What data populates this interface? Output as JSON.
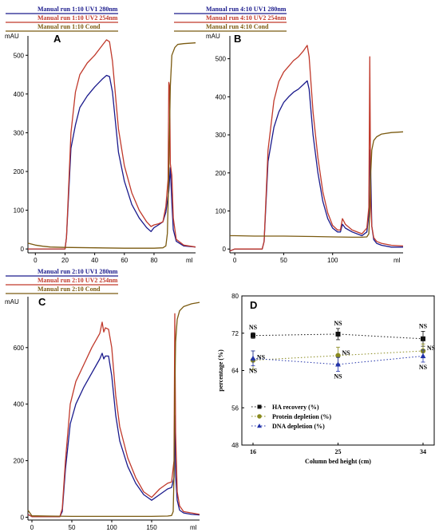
{
  "colors": {
    "uv1": "#1a1a8c",
    "uv2": "#c0392b",
    "cond": "#7a5a10",
    "ha": "#111111",
    "protein": "#8a8a1e",
    "dna": "#2233aa"
  },
  "chart_data": [
    {
      "panel": "A",
      "type": "line",
      "yunit": "mAU",
      "xunit": "ml",
      "xlim": [
        -5,
        108
      ],
      "ylim": [
        -10,
        550
      ],
      "xticks": [
        "0",
        "20",
        "40",
        "60",
        "80"
      ],
      "xtick_values": [
        0,
        20,
        40,
        60,
        80
      ],
      "yticks": [
        "0",
        "100",
        "200",
        "300",
        "400",
        "500"
      ],
      "ytick_values": [
        0,
        100,
        200,
        300,
        400,
        500
      ],
      "legend": [
        "Manual run 1:10  UV1  280nm",
        "Manual run 1:10  UV2  254nm",
        "Manual run 1:10  Cond"
      ],
      "series": [
        {
          "name": "Manual run 1:10  UV1  280nm",
          "color_key": "uv1",
          "x": [
            -5,
            20,
            21,
            24,
            27,
            30,
            35,
            40,
            45,
            48,
            50,
            52,
            56,
            60,
            65,
            70,
            75,
            78,
            80,
            83,
            86,
            88,
            90,
            91,
            92,
            93,
            95,
            100,
            108
          ],
          "y": [
            0,
            0,
            30,
            260,
            320,
            365,
            395,
            418,
            438,
            448,
            445,
            405,
            250,
            175,
            115,
            80,
            55,
            45,
            55,
            62,
            70,
            95,
            150,
            210,
            120,
            50,
            20,
            8,
            5
          ]
        },
        {
          "name": "Manual run 1:10  UV2  254nm",
          "color_key": "uv2",
          "x": [
            -5,
            20,
            21,
            24,
            27,
            30,
            35,
            40,
            45,
            48,
            50,
            52,
            56,
            60,
            65,
            70,
            75,
            78,
            80,
            83,
            86,
            88,
            89.5,
            90,
            90.5,
            91,
            92,
            93,
            95,
            100,
            108
          ],
          "y": [
            0,
            0,
            30,
            300,
            405,
            450,
            480,
            500,
            525,
            540,
            535,
            485,
            310,
            215,
            145,
            100,
            70,
            58,
            62,
            65,
            70,
            110,
            180,
            430,
            420,
            220,
            190,
            80,
            25,
            10,
            5
          ]
        },
        {
          "name": "Manual run 1:10  Cond",
          "color_key": "cond",
          "x": [
            -5,
            0,
            5,
            10,
            20,
            40,
            60,
            70,
            80,
            86,
            88,
            89,
            90,
            91,
            92,
            94,
            96,
            100,
            108
          ],
          "y": [
            15,
            10,
            7,
            5,
            4,
            3,
            2,
            2,
            2,
            3,
            8,
            40,
            200,
            420,
            500,
            520,
            528,
            530,
            532
          ]
        }
      ]
    },
    {
      "panel": "B",
      "type": "line",
      "yunit": "mAU",
      "xunit": "ml",
      "xlim": [
        -5,
        172
      ],
      "ylim": [
        -10,
        560
      ],
      "xticks": [
        "0",
        "50",
        "100"
      ],
      "xtick_values": [
        0,
        50,
        100
      ],
      "yticks": [
        "0",
        "100",
        "200",
        "300",
        "400",
        "500"
      ],
      "ytick_values": [
        0,
        100,
        200,
        300,
        400,
        500
      ],
      "legend": [
        "Manual run 4:10  UV1  280nm",
        "Manual run 4:10  UV2  254nm",
        "Manual run 4:10  Cond"
      ],
      "series": [
        {
          "name": "Manual run 4:10  UV1  280nm",
          "color_key": "uv1",
          "x": [
            -5,
            0,
            28,
            30,
            34,
            40,
            45,
            50,
            55,
            60,
            65,
            70,
            74,
            76,
            80,
            85,
            90,
            95,
            100,
            105,
            108,
            110,
            113,
            120,
            130,
            135,
            137,
            138,
            139,
            140,
            142,
            145,
            150,
            160,
            172
          ],
          "y": [
            -5,
            0,
            0,
            20,
            230,
            320,
            360,
            385,
            400,
            412,
            420,
            432,
            442,
            420,
            300,
            200,
            125,
            80,
            55,
            45,
            45,
            65,
            55,
            45,
            35,
            45,
            90,
            260,
            200,
            60,
            25,
            15,
            10,
            5,
            5
          ]
        },
        {
          "name": "Manual run 4:10  UV2  254nm",
          "color_key": "uv2",
          "x": [
            -5,
            0,
            28,
            30,
            34,
            40,
            45,
            50,
            55,
            60,
            65,
            70,
            74,
            76,
            80,
            85,
            90,
            95,
            100,
            105,
            108,
            110,
            113,
            120,
            130,
            135,
            137,
            138,
            138.5,
            139,
            140,
            142,
            145,
            150,
            160,
            172
          ],
          "y": [
            -5,
            0,
            0,
            20,
            260,
            390,
            440,
            465,
            480,
            495,
            505,
            520,
            535,
            505,
            360,
            240,
            150,
            95,
            62,
            50,
            50,
            80,
            65,
            50,
            40,
            55,
            110,
            505,
            300,
            120,
            60,
            30,
            20,
            15,
            10,
            8
          ]
        },
        {
          "name": "Manual run 4:10  Cond",
          "color_key": "cond",
          "x": [
            -5,
            0,
            20,
            50,
            80,
            100,
            120,
            130,
            135,
            137,
            138,
            139,
            140,
            142,
            145,
            150,
            160,
            172
          ],
          "y": [
            35,
            35,
            34,
            34,
            33,
            32,
            31,
            31,
            32,
            40,
            100,
            200,
            260,
            285,
            295,
            302,
            306,
            308
          ]
        }
      ]
    },
    {
      "panel": "C",
      "type": "line",
      "yunit": "mAU",
      "xunit": "ml",
      "xlim": [
        -5,
        210
      ],
      "ylim": [
        -10,
        780
      ],
      "xticks": [
        "0",
        "50",
        "100",
        "150"
      ],
      "xtick_values": [
        0,
        50,
        100,
        150
      ],
      "yticks": [
        "0",
        "200",
        "400",
        "600"
      ],
      "ytick_values": [
        0,
        200,
        400,
        600
      ],
      "legend": [
        "Manual run 2:10  UV1  280nm",
        "Manual run 2:10  UV2  254nm",
        "Manual run 2:10  Cond"
      ],
      "series": [
        {
          "name": "Manual run 2:10  UV1  280nm",
          "color_key": "uv1",
          "x": [
            -5,
            0,
            35,
            38,
            42,
            48,
            55,
            65,
            75,
            85,
            88,
            90,
            92,
            96,
            100,
            105,
            110,
            120,
            130,
            140,
            145,
            150,
            160,
            170,
            175,
            178,
            179,
            180,
            182,
            185,
            190,
            200,
            210
          ],
          "y": [
            10,
            2,
            2,
            20,
            170,
            330,
            400,
            460,
            510,
            560,
            580,
            560,
            570,
            570,
            500,
            360,
            270,
            180,
            120,
            80,
            70,
            60,
            80,
            100,
            105,
            140,
            360,
            150,
            60,
            25,
            15,
            10,
            8
          ]
        },
        {
          "name": "Manual run 2:10  UV2  254nm",
          "color_key": "uv2",
          "x": [
            -5,
            0,
            35,
            38,
            42,
            48,
            55,
            65,
            75,
            85,
            88,
            90,
            92,
            96,
            100,
            105,
            110,
            120,
            130,
            140,
            145,
            150,
            160,
            170,
            175,
            178,
            179,
            179.5,
            180,
            182,
            185,
            190,
            200,
            210
          ],
          "y": [
            10,
            2,
            2,
            30,
            200,
            400,
            480,
            540,
            600,
            650,
            690,
            655,
            670,
            665,
            600,
            430,
            320,
            210,
            140,
            90,
            80,
            70,
            100,
            120,
            125,
            200,
            720,
            500,
            300,
            90,
            40,
            20,
            15,
            10
          ]
        },
        {
          "name": "Manual run 2:10  Cond",
          "color_key": "cond",
          "x": [
            -5,
            0,
            20,
            50,
            100,
            150,
            170,
            175,
            177,
            178,
            179,
            180,
            182,
            185,
            190,
            200,
            210
          ],
          "y": [
            25,
            5,
            4,
            3,
            3,
            3,
            4,
            6,
            20,
            150,
            450,
            620,
            700,
            730,
            745,
            755,
            760
          ]
        }
      ]
    },
    {
      "panel": "D",
      "type": "scatter",
      "xlabel": "Column bed height (cm)",
      "ylabel": "percentage (%)",
      "ylim": [
        48,
        80
      ],
      "x": [
        16,
        25,
        34
      ],
      "xticks": [
        "16",
        "25",
        "34"
      ],
      "yticks": [
        "48",
        "56",
        "64",
        "72",
        "80"
      ],
      "ytick_values": [
        48,
        56,
        64,
        72,
        80
      ],
      "annotation": "NS",
      "series": [
        {
          "name": "HA recovery (%)",
          "color_key": "ha",
          "marker": "square",
          "values": [
            71.5,
            71.8,
            70.8
          ],
          "err": [
            0.6,
            1.2,
            1.6
          ]
        },
        {
          "name": "Protein depletion (%)",
          "color_key": "protein",
          "marker": "circle",
          "values": [
            66.2,
            67.2,
            68.2
          ],
          "err": [
            2.0,
            1.8,
            1.5
          ]
        },
        {
          "name": "DNA depletion (%)",
          "color_key": "dna",
          "marker": "triangle",
          "values": [
            66.6,
            65.3,
            67.1
          ],
          "err": [
            1.6,
            1.5,
            1.3
          ]
        }
      ]
    }
  ]
}
